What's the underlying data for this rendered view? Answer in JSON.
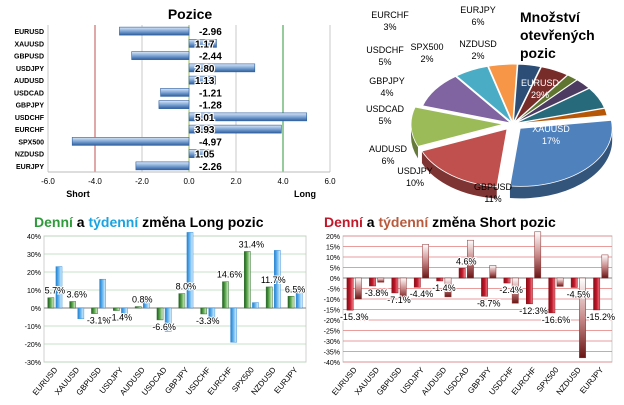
{
  "colors": {
    "green": "#2e9a3a",
    "cyan": "#1aa3e0",
    "red": "#c0182a",
    "brown": "#b85a3c",
    "bar_blue": "#4f81bd",
    "line_red": "#c0504d"
  },
  "chart_data": [
    {
      "type": "bar",
      "id": "positions",
      "orientation": "horizontal",
      "title": "Pozice",
      "categories": [
        "EURUSD",
        "XAUUSD",
        "GBPUSD",
        "USDJPY",
        "AUDUSD",
        "USDCAD",
        "GBPJPY",
        "USDCHF",
        "EURCHF",
        "SPX500",
        "NZDUSD",
        "EURJPY"
      ],
      "values": [
        -2.96,
        1.17,
        -2.44,
        2.8,
        1.13,
        -1.21,
        -1.28,
        5.01,
        3.93,
        -4.97,
        1.05,
        -2.26
      ],
      "value_labels": [
        "-2.96",
        "1.17",
        "-2.44",
        "2.80",
        "1.13",
        "-1.21",
        "-1.28",
        "5.01",
        "3.93",
        "-4.97",
        "1.05",
        "-2.26"
      ],
      "xlim": [
        -6,
        6
      ],
      "xticks": [
        "-6.0",
        "-4.0",
        "-2.0",
        "0.0",
        "2.0",
        "4.0",
        "6.0"
      ],
      "xlabel_left": "Short",
      "xlabel_right": "Long",
      "grid": true
    },
    {
      "type": "pie",
      "id": "open_interest",
      "title": [
        "Množství",
        "otevřených",
        "pozic"
      ],
      "slices": [
        {
          "label": "EURUSD",
          "pct": "29%",
          "value": 29,
          "color": "#4f81bd"
        },
        {
          "label": "XAUUSD",
          "pct": "17%",
          "value": 17,
          "color": "#c0504d"
        },
        {
          "label": "GBPUSD",
          "pct": "11%",
          "value": 11,
          "color": "#9bbb59"
        },
        {
          "label": "USDJPY",
          "pct": "10%",
          "value": 10,
          "color": "#8064a2"
        },
        {
          "label": "AUDUSD",
          "pct": "6%",
          "value": 6,
          "color": "#4bacc6"
        },
        {
          "label": "USDCAD",
          "pct": "5%",
          "value": 5,
          "color": "#f79646"
        },
        {
          "label": "GBPJPY",
          "pct": "4%",
          "value": 4,
          "color": "#2c4d75"
        },
        {
          "label": "USDCHF",
          "pct": "5%",
          "value": 5,
          "color": "#772c2a"
        },
        {
          "label": "SPX500",
          "pct": "2%",
          "value": 2,
          "color": "#5f7530"
        },
        {
          "label": "EURCHF",
          "pct": "3%",
          "value": 3,
          "color": "#4d3b62"
        },
        {
          "label": "EURJPY",
          "pct": "6%",
          "value": 6,
          "color": "#276a7c"
        },
        {
          "label": "NZDUSD",
          "pct": "2%",
          "value": 2,
          "color": "#b65708"
        }
      ]
    },
    {
      "type": "bar",
      "id": "long_change",
      "title": {
        "part1": "Denní",
        "part2": " a ",
        "part3": "týdenní",
        "part4": " změna Long pozic"
      },
      "categories": [
        "EURUSD",
        "XAUUSD",
        "GBPUSD",
        "USDJPY",
        "AUDUSD",
        "USDCAD",
        "GBPJPY",
        "USDCHF",
        "EURCHF",
        "SPX500",
        "NZDUSD",
        "EURJPY"
      ],
      "series": [
        {
          "name": "Denní",
          "values": [
            5.7,
            3.6,
            -3.1,
            -1.4,
            0.8,
            -6.6,
            8.0,
            -3.3,
            14.6,
            31.4,
            11.7,
            6.5
          ]
        },
        {
          "name": "týdenní",
          "values": [
            23,
            -6,
            16,
            -4,
            4,
            -13,
            42,
            -7,
            -19,
            3,
            32,
            11
          ]
        }
      ],
      "data_labels": [
        "5.7%",
        "3.6%",
        "-3.1%",
        "-1.4%",
        "0.8%",
        "-6.6%",
        "8.0%",
        "-3.3%",
        "14.6%",
        "31.4%",
        "11.7%",
        "6.5%"
      ],
      "ylim": [
        -30,
        40
      ],
      "yticks": [
        "-30%",
        "-20%",
        "-10%",
        "0%",
        "10%",
        "20%",
        "30%",
        "40%"
      ]
    },
    {
      "type": "bar",
      "id": "short_change",
      "title": {
        "part1": "Denní",
        "part2": " a ",
        "part3": "týdenní",
        "part4": " změna Short pozic"
      },
      "categories": [
        "EURUSD",
        "XAUUSD",
        "GBPUSD",
        "USDJPY",
        "AUDUSD",
        "USDCAD",
        "GBPJPY",
        "USDCHF",
        "EURCHF",
        "SPX500",
        "NZDUSD",
        "EURJPY"
      ],
      "series": [
        {
          "name": "Denní",
          "values": [
            -15.3,
            -3.8,
            -7.1,
            -4.4,
            -1.4,
            4.6,
            -8.7,
            -2.4,
            -12.3,
            -16.6,
            -4.5,
            -15.2
          ]
        },
        {
          "name": "týdenní",
          "values": [
            -10,
            -2,
            -10,
            16,
            -9,
            18,
            6,
            -12,
            22,
            -4,
            -38,
            11
          ]
        }
      ],
      "data_labels": [
        "-15.3%",
        "-3.8%",
        "-7.1%",
        "-4.4%",
        "-1.4%",
        "4.6%",
        "-8.7%",
        "-2.4%",
        "-12.3%",
        "-16.6%",
        "-4.5%",
        "-15.2%"
      ],
      "ylim": [
        -40,
        20
      ],
      "yticks": [
        "-40%",
        "-35%",
        "-30%",
        "-25%",
        "-20%",
        "-15%",
        "-10%",
        "-5%",
        "0%",
        "5%",
        "10%",
        "15%",
        "20%"
      ]
    }
  ]
}
